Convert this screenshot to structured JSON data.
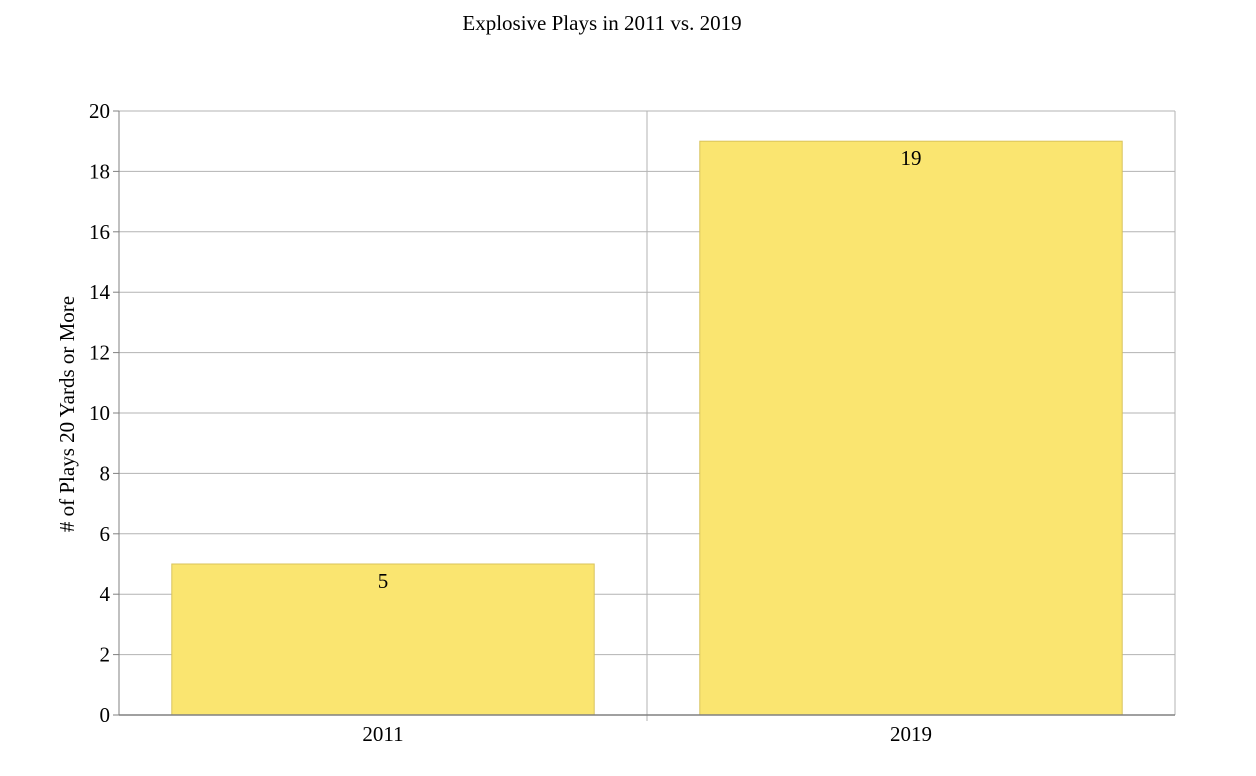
{
  "chart_data": {
    "type": "bar",
    "title": "Explosive Plays in 2011 vs. 2019",
    "xlabel": "",
    "ylabel": "# of Plays 20 Yards or More",
    "categories": [
      "2011",
      "2019"
    ],
    "series": [
      {
        "values": [
          5,
          19
        ]
      }
    ],
    "data_labels": [
      "5",
      "19"
    ],
    "ylim": [
      0,
      20
    ],
    "yticks": [
      "0",
      "2",
      "4",
      "6",
      "8",
      "10",
      "12",
      "14",
      "16",
      "18",
      "20"
    ],
    "grid": true,
    "legend": "none",
    "colors": {
      "bar_fill": "#fae570",
      "bar_stroke": "#d9c35a",
      "grid": "#b3b3b3",
      "axis": "#808080"
    }
  }
}
